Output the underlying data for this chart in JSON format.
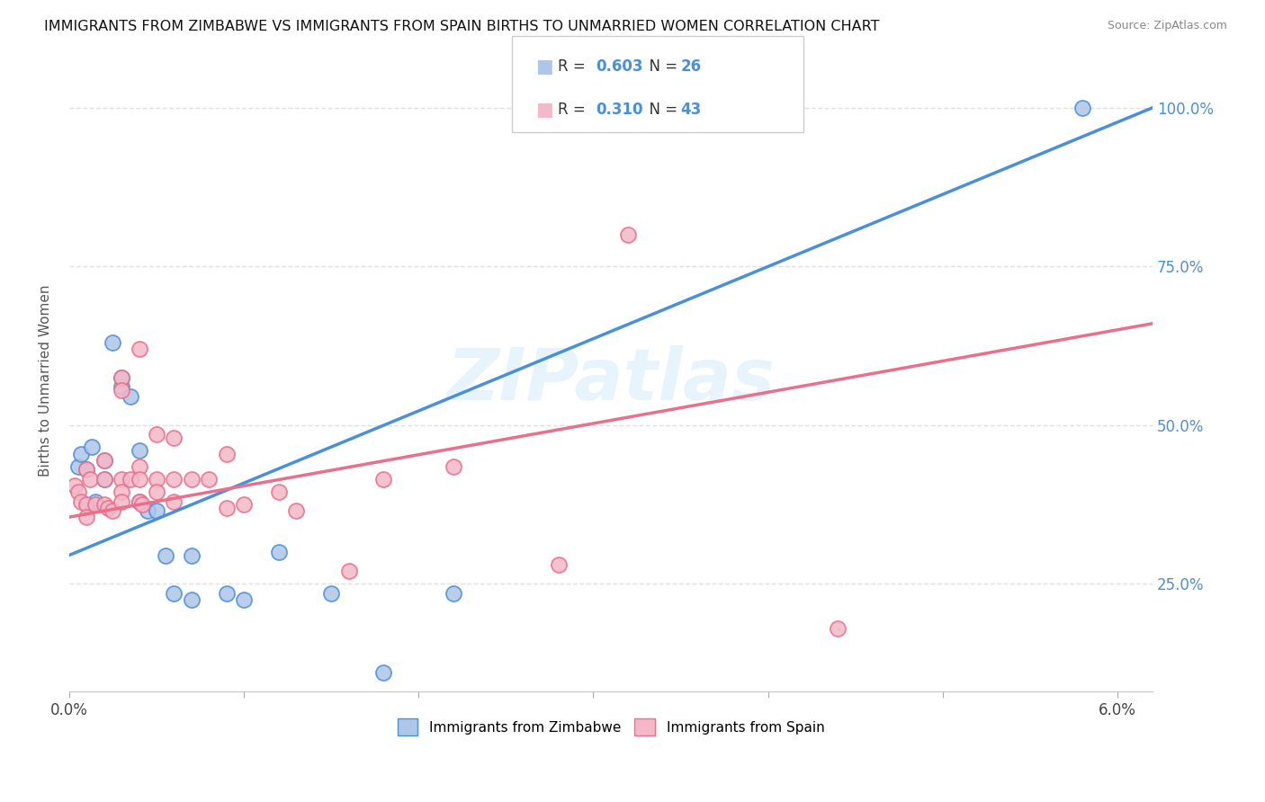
{
  "title": "IMMIGRANTS FROM ZIMBABWE VS IMMIGRANTS FROM SPAIN BIRTHS TO UNMARRIED WOMEN CORRELATION CHART",
  "source": "Source: ZipAtlas.com",
  "ylabel": "Births to Unmarried Women",
  "r_zimbabwe": 0.603,
  "n_zimbabwe": 26,
  "r_spain": 0.31,
  "n_spain": 43,
  "watermark": "ZIPatlas",
  "blue_color": "#4a90d9",
  "pink_color": "#e8708a",
  "dot_blue": "#aec6e8",
  "dot_pink": "#f4b8c8",
  "zimbabwe_points": [
    [
      0.0005,
      0.435
    ],
    [
      0.0007,
      0.455
    ],
    [
      0.001,
      0.43
    ],
    [
      0.0013,
      0.465
    ],
    [
      0.0015,
      0.38
    ],
    [
      0.002,
      0.445
    ],
    [
      0.002,
      0.415
    ],
    [
      0.0025,
      0.63
    ],
    [
      0.003,
      0.56
    ],
    [
      0.003,
      0.575
    ],
    [
      0.0035,
      0.545
    ],
    [
      0.004,
      0.46
    ],
    [
      0.004,
      0.38
    ],
    [
      0.0045,
      0.365
    ],
    [
      0.005,
      0.365
    ],
    [
      0.0055,
      0.295
    ],
    [
      0.006,
      0.235
    ],
    [
      0.007,
      0.295
    ],
    [
      0.007,
      0.225
    ],
    [
      0.009,
      0.235
    ],
    [
      0.01,
      0.225
    ],
    [
      0.012,
      0.3
    ],
    [
      0.015,
      0.235
    ],
    [
      0.018,
      0.11
    ],
    [
      0.022,
      0.235
    ],
    [
      0.058,
      1.0
    ]
  ],
  "spain_points": [
    [
      0.0003,
      0.405
    ],
    [
      0.0005,
      0.395
    ],
    [
      0.0007,
      0.38
    ],
    [
      0.001,
      0.43
    ],
    [
      0.001,
      0.375
    ],
    [
      0.001,
      0.355
    ],
    [
      0.0012,
      0.415
    ],
    [
      0.0015,
      0.375
    ],
    [
      0.002,
      0.445
    ],
    [
      0.002,
      0.415
    ],
    [
      0.002,
      0.375
    ],
    [
      0.0022,
      0.37
    ],
    [
      0.0025,
      0.365
    ],
    [
      0.003,
      0.575
    ],
    [
      0.003,
      0.555
    ],
    [
      0.003,
      0.415
    ],
    [
      0.003,
      0.395
    ],
    [
      0.003,
      0.38
    ],
    [
      0.0035,
      0.415
    ],
    [
      0.004,
      0.62
    ],
    [
      0.004,
      0.435
    ],
    [
      0.004,
      0.415
    ],
    [
      0.004,
      0.38
    ],
    [
      0.0042,
      0.375
    ],
    [
      0.005,
      0.485
    ],
    [
      0.005,
      0.415
    ],
    [
      0.005,
      0.395
    ],
    [
      0.006,
      0.48
    ],
    [
      0.006,
      0.415
    ],
    [
      0.006,
      0.38
    ],
    [
      0.007,
      0.415
    ],
    [
      0.008,
      0.415
    ],
    [
      0.009,
      0.455
    ],
    [
      0.009,
      0.37
    ],
    [
      0.01,
      0.375
    ],
    [
      0.012,
      0.395
    ],
    [
      0.013,
      0.365
    ],
    [
      0.016,
      0.27
    ],
    [
      0.018,
      0.415
    ],
    [
      0.022,
      0.435
    ],
    [
      0.028,
      0.28
    ],
    [
      0.032,
      0.8
    ],
    [
      0.044,
      0.18
    ]
  ],
  "xlim": [
    0.0,
    0.062
  ],
  "ylim": [
    0.08,
    1.06
  ],
  "ytick_vals": [
    0.25,
    0.5,
    0.75,
    1.0
  ],
  "ytick_labels": [
    "25.0%",
    "50.0%",
    "75.0%",
    "100.0%"
  ],
  "xtick_positions": [
    0.0,
    0.01,
    0.02,
    0.03,
    0.04,
    0.05,
    0.06
  ],
  "xtick_labels": [
    "0.0%",
    "",
    "",
    "",
    "",
    "",
    "6.0%"
  ],
  "grid_color": "#e0e0e0",
  "background_color": "#ffffff",
  "legend_label_zimbabwe": "Immigrants from Zimbabwe",
  "legend_label_spain": "Immigrants from Spain"
}
